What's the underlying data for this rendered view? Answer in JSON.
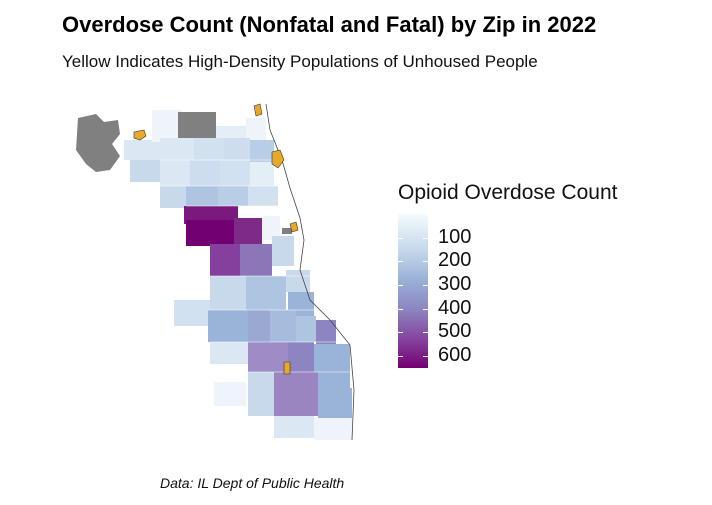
{
  "header": {
    "title": "Overdose Count (Nonfatal and Fatal) by Zip in 2022",
    "subtitle": "Yellow Indicates High-Density Populations of Unhoused People"
  },
  "legend": {
    "title": "Opioid Overdose Count",
    "ticks": [
      {
        "value": 100,
        "label": "100"
      },
      {
        "value": 200,
        "label": "200"
      },
      {
        "value": 300,
        "label": "300"
      },
      {
        "value": 400,
        "label": "400"
      },
      {
        "value": 500,
        "label": "500"
      },
      {
        "value": 600,
        "label": "600"
      }
    ],
    "range": [
      0,
      650
    ],
    "colors": [
      "#f5fbfd",
      "#c2d6ea",
      "#9ab3d8",
      "#8c85c1",
      "#85419c",
      "#730072"
    ]
  },
  "map": {
    "no_data_color": "#808080",
    "unhoused_color": "#e8a829",
    "zip_values": [
      {
        "zip": "north-1",
        "value": 60
      },
      {
        "zip": "north-2",
        "value": 90
      },
      {
        "zip": "west-high-1",
        "value": 620
      },
      {
        "zip": "west-high-2",
        "value": 560
      },
      {
        "zip": "west-mid-1",
        "value": 480
      },
      {
        "zip": "west-mid-2",
        "value": 380
      },
      {
        "zip": "south-1",
        "value": 360
      },
      {
        "zip": "south-2",
        "value": 350
      },
      {
        "zip": "far-south-1",
        "value": 220
      }
    ]
  },
  "caption": "Data: IL Dept of Public Health"
}
